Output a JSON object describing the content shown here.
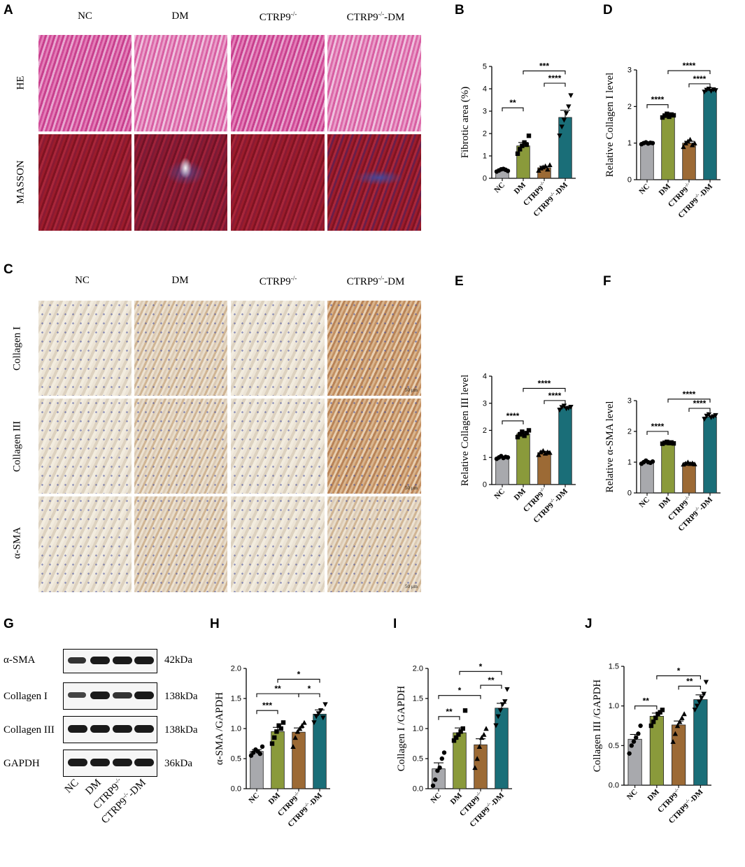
{
  "panels": {
    "A": "A",
    "B": "B",
    "C": "C",
    "D": "D",
    "E": "E",
    "F": "F",
    "G": "G",
    "H": "H",
    "I": "I",
    "J": "J"
  },
  "histology": {
    "columns": [
      "NC",
      "DM",
      "CTRP9",
      "CTRP9"
    ],
    "column_suffix": "-DM",
    "knockout_sup": "-/-",
    "rows_A": [
      "HE",
      "MASSON"
    ],
    "rows_C": [
      "Collagen I",
      "Collagen III",
      "α-SMA"
    ],
    "scale_text": "50 μm"
  },
  "western_blot": {
    "proteins": [
      "α-SMA",
      "Collagen I",
      "Collagen III",
      "GAPDH"
    ],
    "sizes": [
      "42kDa",
      "138kDa",
      "138kDa",
      "36kDa"
    ],
    "lanes": [
      "NC",
      "DM",
      "CTRP9",
      "CTRP9"
    ]
  },
  "chart_data": [
    {
      "panel": "B",
      "type": "bar",
      "ylabel": "Fibrotic area (%)",
      "ylim": [
        0,
        5
      ],
      "yticks": [
        "0",
        "1",
        "2",
        "3",
        "4",
        "5"
      ],
      "categories": [
        "NC",
        "DM",
        "CTRP9-/-",
        "CTRP9-/--DM"
      ],
      "values": [
        0.37,
        1.45,
        0.47,
        2.72
      ],
      "errors": [
        0.05,
        0.15,
        0.07,
        0.32
      ],
      "points": [
        [
          0.3,
          0.35,
          0.4,
          0.42,
          0.38,
          0.33
        ],
        [
          1.1,
          1.3,
          1.45,
          1.6,
          1.5,
          1.9
        ],
        [
          0.35,
          0.45,
          0.5,
          0.55,
          0.4,
          0.6
        ],
        [
          1.9,
          2.3,
          2.6,
          2.9,
          3.2,
          3.7
        ]
      ],
      "markers": [
        "circle",
        "square",
        "triangle",
        "inv-triangle"
      ],
      "sig": [
        {
          "a": 0,
          "b": 1,
          "label": "**",
          "y": 3.15
        },
        {
          "a": 2,
          "b": 3,
          "label": "****",
          "y": 4.25
        },
        {
          "a": 1,
          "b": 3,
          "label": "***",
          "y": 4.8
        }
      ]
    },
    {
      "panel": "D",
      "type": "bar",
      "ylabel": "Relative Collagen I level",
      "ylim": [
        0,
        3
      ],
      "yticks": [
        "0",
        "1",
        "2",
        "3"
      ],
      "categories": [
        "NC",
        "DM",
        "CTRP9-/-",
        "CTRP9-/--DM"
      ],
      "values": [
        1.0,
        1.75,
        1.0,
        2.44
      ],
      "errors": [
        0.02,
        0.05,
        0.05,
        0.03
      ],
      "points": [
        [
          0.97,
          1.0,
          1.02,
          0.99,
          1.01,
          1.0
        ],
        [
          1.7,
          1.75,
          1.8,
          1.72,
          1.78,
          1.76
        ],
        [
          0.9,
          1.0,
          1.05,
          1.1,
          0.95,
          1.0
        ],
        [
          2.4,
          2.45,
          2.48,
          2.42,
          2.46,
          2.44
        ]
      ],
      "markers": [
        "circle",
        "square",
        "triangle",
        "inv-triangle"
      ],
      "sig": [
        {
          "a": 0,
          "b": 1,
          "label": "****",
          "y": 2.05
        },
        {
          "a": 2,
          "b": 3,
          "label": "****",
          "y": 2.62
        },
        {
          "a": 1,
          "b": 3,
          "label": "****",
          "y": 2.98
        }
      ]
    },
    {
      "panel": "E",
      "type": "bar",
      "ylabel": "Relative Collagen III level",
      "ylim": [
        0,
        4
      ],
      "yticks": [
        "0",
        "1",
        "2",
        "3",
        "4"
      ],
      "categories": [
        "NC",
        "DM",
        "CTRP9-/-",
        "CTRP9-/--DM"
      ],
      "values": [
        1.0,
        1.87,
        1.18,
        2.83
      ],
      "errors": [
        0.03,
        0.06,
        0.05,
        0.04
      ],
      "points": [
        [
          0.95,
          1.0,
          1.05,
          0.98,
          1.02,
          1.0
        ],
        [
          1.75,
          1.85,
          1.95,
          1.8,
          1.9,
          2.0
        ],
        [
          1.1,
          1.2,
          1.25,
          1.15,
          1.2,
          1.18
        ],
        [
          2.75,
          2.85,
          2.9,
          2.8,
          2.82,
          2.86
        ]
      ],
      "markers": [
        "circle",
        "square",
        "triangle",
        "inv-triangle"
      ],
      "sig": [
        {
          "a": 0,
          "b": 1,
          "label": "****",
          "y": 2.35
        },
        {
          "a": 2,
          "b": 3,
          "label": "****",
          "y": 3.1
        },
        {
          "a": 1,
          "b": 3,
          "label": "****",
          "y": 3.55
        }
      ]
    },
    {
      "panel": "F",
      "type": "bar",
      "ylabel": "Relative α-SMA level",
      "ylim": [
        0,
        3
      ],
      "yticks": [
        "0",
        "1",
        "2",
        "3"
      ],
      "categories": [
        "NC",
        "DM",
        "CTRP9-/-",
        "CTRP9-/--DM"
      ],
      "values": [
        1.0,
        1.63,
        0.96,
        2.47
      ],
      "errors": [
        0.03,
        0.03,
        0.03,
        0.04
      ],
      "points": [
        [
          0.95,
          1.0,
          1.05,
          1.0,
          0.98,
          1.02
        ],
        [
          1.6,
          1.63,
          1.66,
          1.62,
          1.64,
          1.61
        ],
        [
          0.93,
          0.96,
          1.0,
          0.95,
          0.97,
          0.94
        ],
        [
          2.4,
          2.5,
          2.55,
          2.45,
          2.48,
          2.52
        ]
      ],
      "markers": [
        "circle",
        "square",
        "triangle",
        "inv-triangle"
      ],
      "sig": [
        {
          "a": 0,
          "b": 1,
          "label": "****",
          "y": 2.0
        },
        {
          "a": 2,
          "b": 3,
          "label": "****",
          "y": 2.75
        },
        {
          "a": 1,
          "b": 3,
          "label": "****",
          "y": 3.05
        }
      ]
    },
    {
      "panel": "H",
      "type": "bar",
      "ylabel": "α-SMA /GAPDH",
      "ylim": [
        0,
        2
      ],
      "yticks": [
        "0.0",
        "0.5",
        "1.0",
        "1.5",
        "2.0"
      ],
      "categories": [
        "NC",
        "DM",
        "CTRP9-/-",
        "CTRP9-/--DM"
      ],
      "values": [
        0.62,
        0.95,
        0.94,
        1.24
      ],
      "errors": [
        0.03,
        0.07,
        0.07,
        0.07
      ],
      "points": [
        [
          0.55,
          0.6,
          0.65,
          0.62,
          0.58,
          0.7
        ],
        [
          0.75,
          0.85,
          0.95,
          1.05,
          1.0,
          1.1
        ],
        [
          0.7,
          0.85,
          0.95,
          1.0,
          1.05,
          1.1
        ],
        [
          1.1,
          1.2,
          1.25,
          1.3,
          1.18,
          1.4
        ]
      ],
      "markers": [
        "circle",
        "square",
        "triangle",
        "inv-triangle"
      ],
      "sig": [
        {
          "a": 0,
          "b": 1,
          "label": "***",
          "y": 1.3
        },
        {
          "a": 0,
          "b": 2,
          "label": "**",
          "y": 1.58
        },
        {
          "a": 2,
          "b": 3,
          "label": "*",
          "y": 1.58
        },
        {
          "a": 1,
          "b": 3,
          "label": "*",
          "y": 1.82
        }
      ]
    },
    {
      "panel": "I",
      "type": "bar",
      "ylabel": "Collagen I /GAPDH",
      "ylim": [
        0,
        2
      ],
      "yticks": [
        "0.0",
        "0.5",
        "1.0",
        "1.5",
        "2.0"
      ],
      "categories": [
        "NC",
        "DM",
        "CTRP9-/-",
        "CTRP9-/--DM"
      ],
      "values": [
        0.33,
        0.93,
        0.73,
        1.34
      ],
      "errors": [
        0.1,
        0.08,
        0.1,
        0.08
      ],
      "points": [
        [
          0.05,
          0.15,
          0.3,
          0.35,
          0.5,
          0.6
        ],
        [
          0.8,
          0.85,
          0.9,
          0.95,
          1.0,
          1.3
        ],
        [
          0.35,
          0.5,
          0.7,
          0.85,
          0.9,
          1.0
        ],
        [
          1.05,
          1.2,
          1.3,
          1.4,
          1.45,
          1.65
        ]
      ],
      "markers": [
        "circle",
        "square",
        "triangle",
        "inv-triangle"
      ],
      "sig": [
        {
          "a": 0,
          "b": 1,
          "label": "**",
          "y": 1.2
        },
        {
          "a": 0,
          "b": 2,
          "label": "*",
          "y": 1.55
        },
        {
          "a": 2,
          "b": 3,
          "label": "**",
          "y": 1.72
        },
        {
          "a": 1,
          "b": 3,
          "label": "*",
          "y": 1.95
        }
      ]
    },
    {
      "panel": "J",
      "type": "bar",
      "ylabel": "Collagen III /GAPDH",
      "ylim": [
        0,
        1.5
      ],
      "yticks": [
        "0.0",
        "0.5",
        "1.0",
        "1.5"
      ],
      "categories": [
        "NC",
        "DM",
        "CTRP9-/-",
        "CTRP9-/--DM"
      ],
      "values": [
        0.58,
        0.87,
        0.76,
        1.08
      ],
      "errors": [
        0.06,
        0.04,
        0.05,
        0.06
      ],
      "points": [
        [
          0.4,
          0.5,
          0.55,
          0.6,
          0.65,
          0.75
        ],
        [
          0.75,
          0.8,
          0.85,
          0.9,
          0.92,
          0.95
        ],
        [
          0.55,
          0.65,
          0.75,
          0.8,
          0.85,
          0.9
        ],
        [
          0.95,
          1.0,
          1.05,
          1.1,
          1.15,
          1.3
        ]
      ],
      "markers": [
        "circle",
        "square",
        "triangle",
        "inv-triangle"
      ],
      "sig": [
        {
          "a": 0,
          "b": 1,
          "label": "**",
          "y": 1.0
        },
        {
          "a": 2,
          "b": 3,
          "label": "**",
          "y": 1.25
        },
        {
          "a": 1,
          "b": 3,
          "label": "*",
          "y": 1.38
        }
      ]
    }
  ],
  "colors": {
    "NC": "#a8a9ad",
    "DM": "#8a9a3b",
    "CTRP9": "#9c6a35",
    "CTRP9_DM": "#1a6e78"
  }
}
